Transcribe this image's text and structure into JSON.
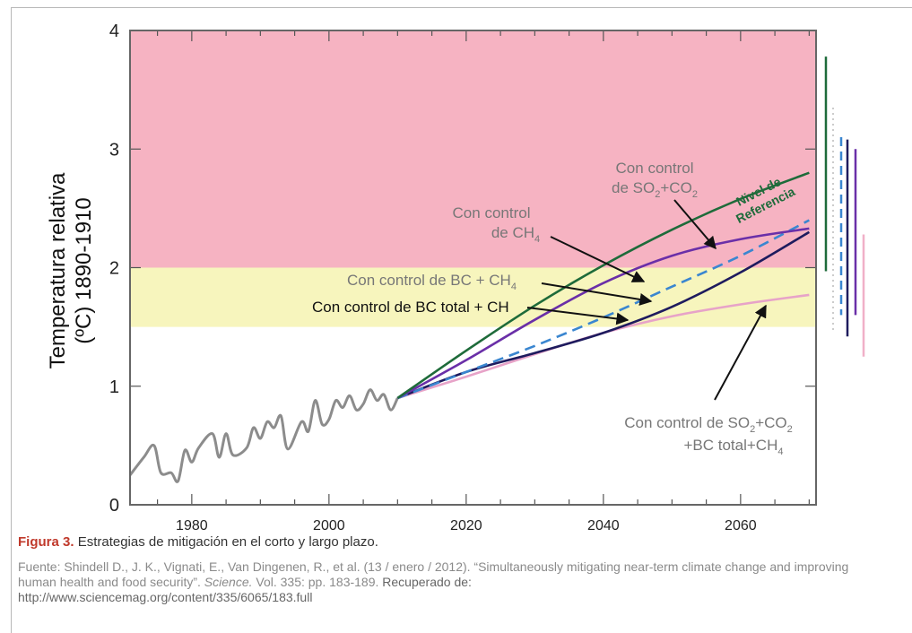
{
  "chart_data": {
    "type": "line",
    "title": "",
    "xlabel": "",
    "ylabel_line1": "Temperatura relativa",
    "ylabel_line2": "(ºC) 1890-1910",
    "xlim": [
      1971,
      2071
    ],
    "ylim": [
      0,
      4
    ],
    "xticks": [
      1980,
      2000,
      2020,
      2040,
      2060
    ],
    "yticks": [
      0,
      1,
      2,
      3,
      4
    ],
    "bands": [
      {
        "from": 2.0,
        "to": 4.0,
        "color": "#f6b3c2"
      },
      {
        "from": 1.5,
        "to": 2.0,
        "color": "#f7f5bd"
      }
    ],
    "historical": {
      "color": "#8c8c8c",
      "x": [
        1971,
        1973,
        1974.5,
        1975.5,
        1977,
        1978,
        1979,
        1980,
        1981,
        1983,
        1984,
        1985,
        1986,
        1988,
        1989,
        1990,
        1991,
        1992,
        1993,
        1994,
        1996,
        1997,
        1998,
        1999,
        2000,
        2001,
        2002,
        2003,
        2004,
        2005,
        2006,
        2007,
        2008,
        2009,
        2010
      ],
      "y": [
        0.25,
        0.4,
        0.5,
        0.27,
        0.27,
        0.2,
        0.46,
        0.36,
        0.48,
        0.6,
        0.4,
        0.6,
        0.42,
        0.48,
        0.65,
        0.56,
        0.7,
        0.65,
        0.75,
        0.47,
        0.7,
        0.62,
        0.88,
        0.68,
        0.72,
        0.88,
        0.82,
        0.92,
        0.8,
        0.85,
        0.97,
        0.88,
        0.93,
        0.8,
        0.9
      ]
    },
    "series": [
      {
        "name": "Nivel de Referencia",
        "color": "#1e6b3a",
        "style": "solid",
        "x": [
          2010,
          2020,
          2030,
          2040,
          2050,
          2060,
          2070
        ],
        "y": [
          0.9,
          1.3,
          1.68,
          2.02,
          2.32,
          2.58,
          2.8
        ]
      },
      {
        "name": "Con control de SO2+CO2",
        "color": "#6a2fa8",
        "style": "solid",
        "x": [
          2010,
          2020,
          2030,
          2040,
          2050,
          2060,
          2070
        ],
        "y": [
          0.9,
          1.22,
          1.56,
          1.87,
          2.1,
          2.24,
          2.33
        ]
      },
      {
        "name": "Con control de CH4",
        "color": "#3a86d0",
        "style": "dashed",
        "x": [
          2010,
          2020,
          2030,
          2040,
          2050,
          2060,
          2070
        ],
        "y": [
          0.9,
          1.12,
          1.34,
          1.58,
          1.84,
          2.1,
          2.4
        ]
      },
      {
        "name": "Con control de BC + CH4",
        "color": "#1e1b5e",
        "style": "solid",
        "x": [
          2010,
          2020,
          2030,
          2040,
          2050,
          2060,
          2070
        ],
        "y": [
          0.9,
          1.12,
          1.28,
          1.45,
          1.67,
          1.96,
          2.3
        ]
      },
      {
        "name": "Con control de SO2+CO2 +BC total+CH4",
        "color": "#e7a3c8",
        "style": "solid",
        "x": [
          2010,
          2020,
          2030,
          2040,
          2050,
          2060,
          2070
        ],
        "y": [
          0.9,
          1.08,
          1.27,
          1.45,
          1.59,
          1.69,
          1.77
        ]
      }
    ],
    "range_bars": [
      {
        "color": "#1e6b3a",
        "style": "solid",
        "from": 1.97,
        "to": 3.78
      },
      {
        "color": "#bbbbbb",
        "style": "dotted",
        "from": 1.45,
        "to": 3.35
      },
      {
        "color": "#3a86d0",
        "style": "dashed",
        "from": 1.6,
        "to": 3.1
      },
      {
        "color": "#1e1b5e",
        "style": "solid",
        "from": 1.42,
        "to": 3.08
      },
      {
        "color": "#6a2fa8",
        "style": "solid",
        "from": 1.6,
        "to": 3.0
      },
      {
        "color": "#f0b0c8",
        "style": "solid",
        "from": 1.25,
        "to": 2.28
      }
    ],
    "annotations": {
      "ref_line1": "Nivel de",
      "ref_line2": "Referencia",
      "so2_line1": "Con control",
      "so2_line2_a": "de SO",
      "so2_line2_sub1": "2",
      "so2_line2_b": "+CO",
      "so2_line2_sub2": "2",
      "ch4_line1": "Con control",
      "ch4_line2": "de CH",
      "ch4_sub": "4",
      "bcch4_text": "Con control de BC + CH",
      "bcch4_sub": "4",
      "bctotal_text": "Con control de BC total + CH",
      "all_line1_a": "Con control de SO",
      "all_line1_sub1": "2",
      "all_line1_b": "+CO",
      "all_line1_sub2": "2",
      "all_line2": "+BC total+CH",
      "all_line2_sub": "4"
    }
  },
  "caption": {
    "figure": "Figura 3.",
    "text": "Estrategias de mitigación en el corto y largo plazo."
  },
  "source": {
    "prefix": "Fuente: Shindell D., J. K., Vignati, E., Van Dingenen, R., et al. (13 / enero / 2012). “Simultaneously mitigating near-term climate change and improving human health and food security”.",
    "journal": "Science.",
    "details": "Vol. 335: pp. 183-189.",
    "retrieved": "Recuperado de:",
    "url": "http://www.sciencemag.org/content/335/6065/183.full"
  }
}
